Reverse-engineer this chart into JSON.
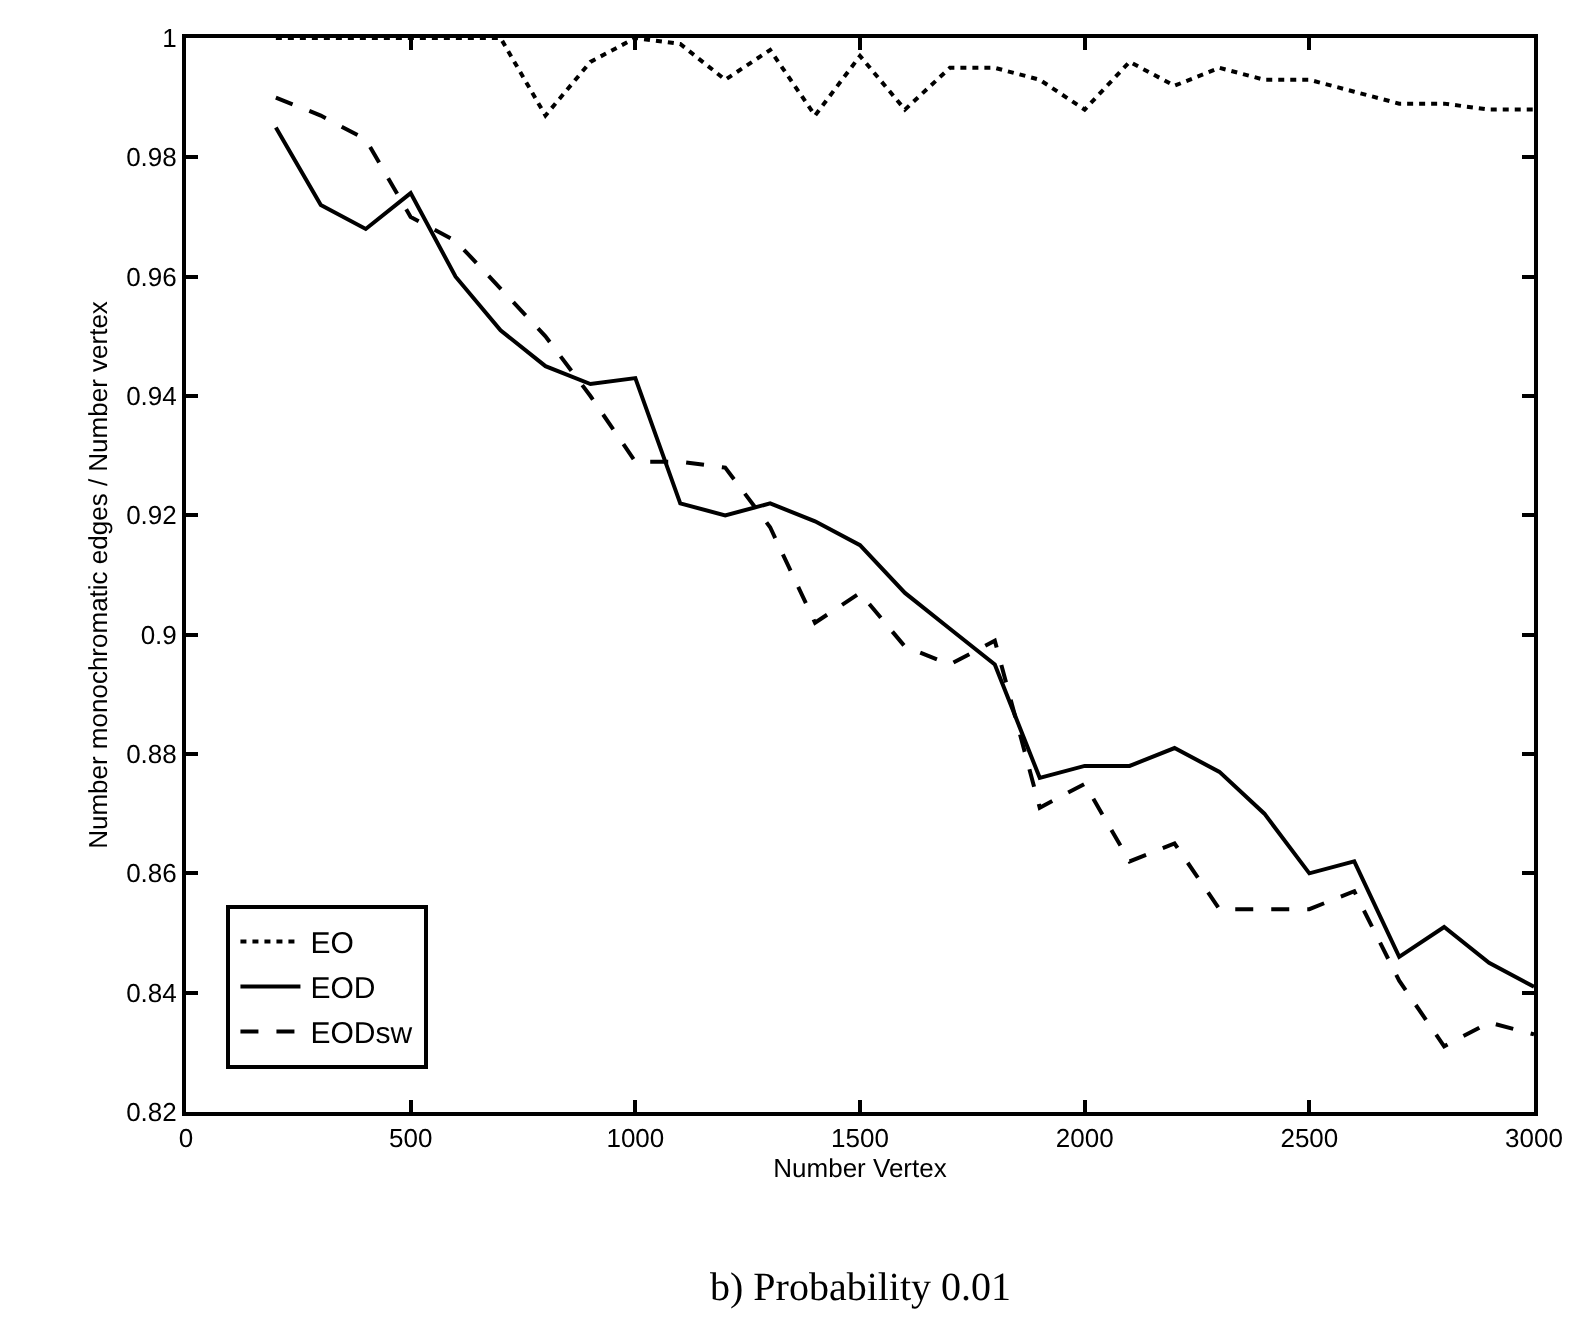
{
  "chart_data": {
    "type": "line",
    "xlabel": "Number Vertex",
    "ylabel": "Number monochromatic edges / Number vertex",
    "x": [
      200,
      300,
      400,
      500,
      600,
      700,
      800,
      900,
      1000,
      1100,
      1200,
      1300,
      1400,
      1500,
      1600,
      1700,
      1800,
      1900,
      2000,
      2100,
      2200,
      2300,
      2400,
      2500,
      2600,
      2700,
      2800,
      2900,
      3000
    ],
    "series": [
      {
        "name": "EO",
        "color": "#000000",
        "line_style": "dotted",
        "values": [
          1.0,
          1.0,
          1.0,
          1.0,
          1.0,
          1.0,
          0.987,
          0.996,
          1.0,
          0.999,
          0.993,
          0.998,
          0.987,
          0.997,
          0.988,
          0.995,
          0.995,
          0.993,
          0.988,
          0.996,
          0.992,
          0.995,
          0.993,
          0.993,
          0.991,
          0.989,
          0.989,
          0.988,
          0.988
        ]
      },
      {
        "name": "EOD",
        "color": "#000000",
        "line_style": "solid",
        "values": [
          0.985,
          0.972,
          0.968,
          0.974,
          0.96,
          0.951,
          0.945,
          0.942,
          0.943,
          0.922,
          0.92,
          0.922,
          0.919,
          0.915,
          0.907,
          0.901,
          0.895,
          0.876,
          0.878,
          0.878,
          0.881,
          0.877,
          0.87,
          0.86,
          0.862,
          0.846,
          0.851,
          0.845,
          0.841
        ]
      },
      {
        "name": "EODsw",
        "color": "#000000",
        "line_style": "dashed",
        "values": [
          0.99,
          0.987,
          0.983,
          0.97,
          0.966,
          0.958,
          0.95,
          0.94,
          0.929,
          0.929,
          0.928,
          0.918,
          0.902,
          0.907,
          0.898,
          0.895,
          0.899,
          0.871,
          0.875,
          0.862,
          0.865,
          0.854,
          0.854,
          0.854,
          0.857,
          0.842,
          0.831,
          0.835,
          0.833
        ]
      }
    ],
    "xlim": [
      0,
      3000
    ],
    "xticks": [
      0,
      500,
      1000,
      1500,
      2000,
      2500,
      3000
    ],
    "ylim": [
      0.82,
      1
    ],
    "yticks": [
      0.82,
      0.84,
      0.86,
      0.88,
      0.9,
      0.92,
      0.94,
      0.96,
      0.98,
      1
    ],
    "grid": false,
    "legend": "bottom left",
    "marker": "none",
    "annotations": [
      "b) Probability 0.01"
    ]
  }
}
